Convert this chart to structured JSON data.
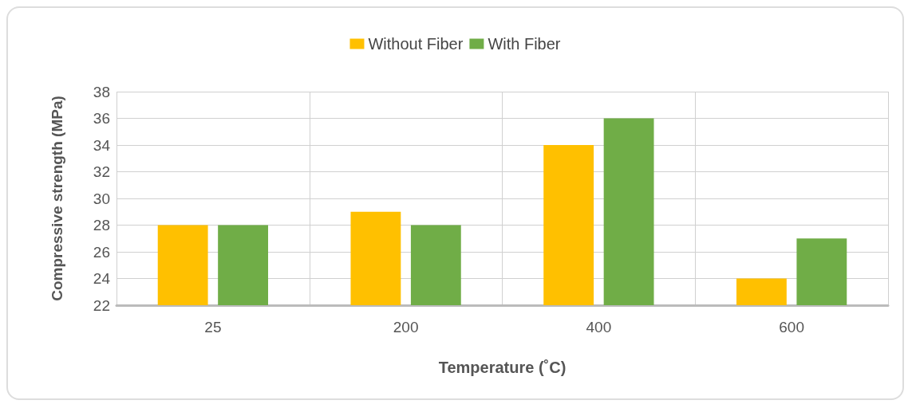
{
  "chart_data": {
    "type": "bar",
    "xlabel": "Temperature (˚C)",
    "ylabel": "Compressive strength (MPa)",
    "categories": [
      "25",
      "200",
      "400",
      "600"
    ],
    "series": [
      {
        "name": "Without Fiber",
        "color": "#ffc000",
        "values": [
          28,
          29,
          34,
          24
        ]
      },
      {
        "name": "With Fiber",
        "color": "#70ad47",
        "values": [
          28,
          28,
          36,
          27
        ]
      }
    ],
    "ylim": [
      22,
      38
    ],
    "yticks": [
      22,
      24,
      26,
      28,
      30,
      32,
      34,
      36,
      38
    ],
    "grid": true,
    "legend": "top"
  }
}
